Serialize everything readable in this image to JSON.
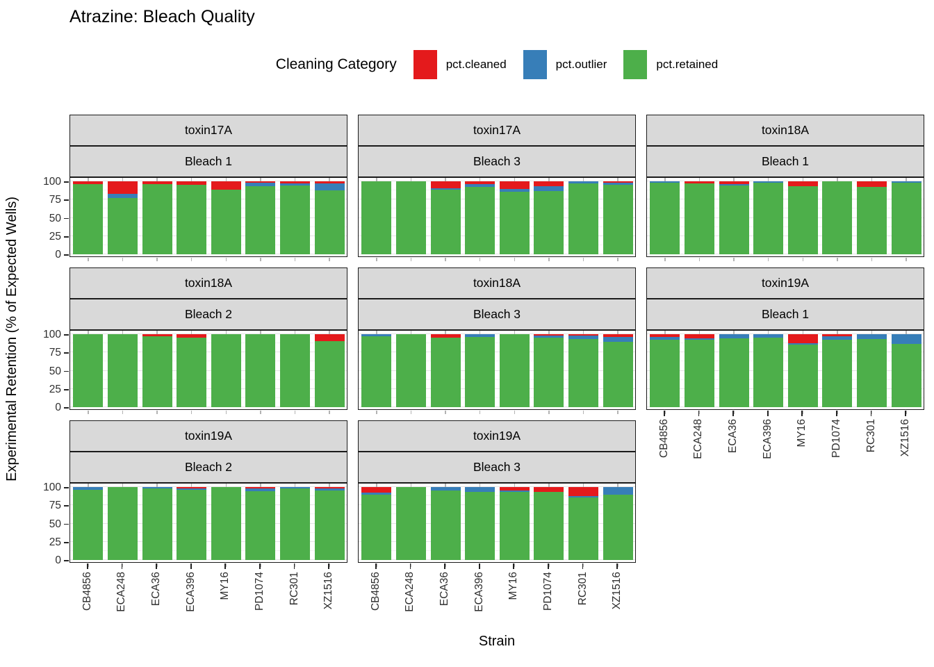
{
  "title": "Atrazine: Bleach Quality",
  "legend": {
    "title": "Cleaning Category",
    "items": [
      {
        "label": "pct.cleaned",
        "color": "#E41A1C"
      },
      {
        "label": "pct.outlier",
        "color": "#377EB8"
      },
      {
        "label": "pct.retained",
        "color": "#4DAF4A"
      }
    ]
  },
  "axes": {
    "y_title": "Experimental Retention (% of Expected Wells)",
    "x_title": "Strain",
    "y_ticks": [
      100,
      75,
      50,
      25,
      0
    ]
  },
  "chart_data": {
    "type": "bar",
    "stacked": true,
    "grid": "on",
    "legend_position": "top",
    "ylim": [
      0,
      100
    ],
    "categories": [
      "CB4856",
      "ECA248",
      "ECA36",
      "ECA396",
      "MY16",
      "PD1074",
      "RC301",
      "XZ1516"
    ],
    "series_names": [
      "pct.cleaned",
      "pct.outlier",
      "pct.retained"
    ],
    "facets": [
      {
        "toxin": "toxin17A",
        "bleach": "Bleach 1",
        "grid_pos": [
          0,
          0
        ],
        "values": {
          "pct.cleaned": [
            4,
            17,
            4,
            5,
            11,
            2,
            3,
            3
          ],
          "pct.outlier": [
            0,
            6,
            0,
            0,
            0,
            5,
            3,
            9
          ],
          "pct.retained": [
            96,
            77,
            96,
            95,
            89,
            93,
            94,
            88
          ]
        }
      },
      {
        "toxin": "toxin17A",
        "bleach": "Bleach 3",
        "grid_pos": [
          0,
          1
        ],
        "values": {
          "pct.cleaned": [
            0,
            0,
            9,
            4,
            10,
            7,
            0,
            2
          ],
          "pct.outlier": [
            0,
            0,
            2,
            4,
            4,
            6,
            3,
            3
          ],
          "pct.retained": [
            100,
            100,
            89,
            92,
            86,
            87,
            97,
            95
          ]
        }
      },
      {
        "toxin": "toxin18A",
        "bleach": "Bleach 1",
        "grid_pos": [
          0,
          2
        ],
        "values": {
          "pct.cleaned": [
            0,
            3,
            4,
            0,
            7,
            0,
            8,
            0
          ],
          "pct.outlier": [
            2,
            0,
            2,
            2,
            0,
            0,
            0,
            2
          ],
          "pct.retained": [
            98,
            97,
            94,
            98,
            93,
            100,
            92,
            98
          ]
        }
      },
      {
        "toxin": "toxin18A",
        "bleach": "Bleach 2",
        "grid_pos": [
          1,
          0
        ],
        "values": {
          "pct.cleaned": [
            0,
            0,
            3,
            5,
            0,
            0,
            0,
            9
          ],
          "pct.outlier": [
            0,
            0,
            0,
            0,
            0,
            0,
            0,
            0
          ],
          "pct.retained": [
            100,
            100,
            97,
            95,
            100,
            100,
            100,
            91
          ]
        }
      },
      {
        "toxin": "toxin18A",
        "bleach": "Bleach 3",
        "grid_pos": [
          1,
          1
        ],
        "values": {
          "pct.cleaned": [
            0,
            0,
            5,
            0,
            0,
            2,
            2,
            4
          ],
          "pct.outlier": [
            3,
            0,
            0,
            4,
            0,
            3,
            5,
            6
          ],
          "pct.retained": [
            97,
            100,
            95,
            96,
            100,
            95,
            93,
            90
          ]
        }
      },
      {
        "toxin": "toxin19A",
        "bleach": "Bleach 1",
        "grid_pos": [
          1,
          2
        ],
        "values": {
          "pct.cleaned": [
            4,
            6,
            0,
            0,
            12,
            3,
            0,
            0
          ],
          "pct.outlier": [
            4,
            2,
            6,
            5,
            2,
            5,
            7,
            13
          ],
          "pct.retained": [
            92,
            92,
            94,
            95,
            86,
            92,
            93,
            87
          ]
        }
      },
      {
        "toxin": "toxin19A",
        "bleach": "Bleach 2",
        "grid_pos": [
          2,
          0
        ],
        "values": {
          "pct.cleaned": [
            0,
            0,
            0,
            2,
            0,
            2,
            0,
            2
          ],
          "pct.outlier": [
            4,
            0,
            2,
            2,
            0,
            4,
            2,
            3
          ],
          "pct.retained": [
            96,
            100,
            98,
            96,
            100,
            94,
            98,
            95
          ]
        }
      },
      {
        "toxin": "toxin19A",
        "bleach": "Bleach 3",
        "grid_pos": [
          2,
          1
        ],
        "values": {
          "pct.cleaned": [
            8,
            0,
            0,
            0,
            5,
            7,
            12,
            0
          ],
          "pct.outlier": [
            2,
            0,
            5,
            7,
            2,
            0,
            2,
            10
          ],
          "pct.retained": [
            90,
            100,
            95,
            93,
            93,
            93,
            86,
            90
          ]
        }
      }
    ]
  }
}
